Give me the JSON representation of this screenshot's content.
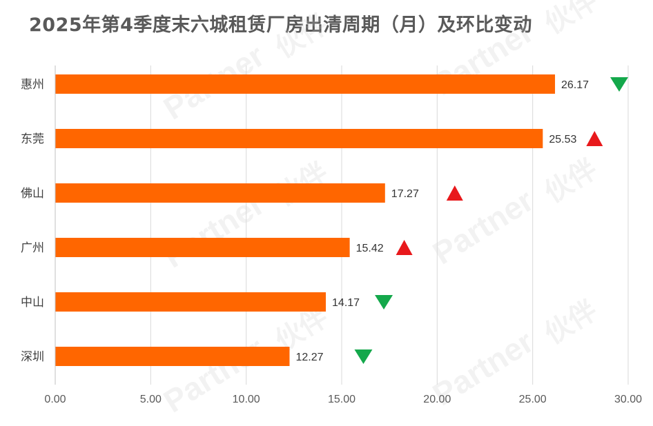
{
  "title": "2025年第4季度末六城租赁厂房出清周期（月）及环比变动",
  "chart_data": {
    "type": "bar",
    "orientation": "horizontal",
    "title": "2025年第4季度末六城租赁厂房出清周期（月）及环比变动",
    "categories": [
      "惠州",
      "东莞",
      "佛山",
      "广州",
      "中山",
      "深圳"
    ],
    "values": [
      26.17,
      25.53,
      17.27,
      15.42,
      14.17,
      12.27
    ],
    "value_labels": [
      "26.17",
      "25.53",
      "17.27",
      "15.42",
      "14.17",
      "12.27"
    ],
    "change_direction": [
      "down",
      "up",
      "up",
      "up",
      "down",
      "down"
    ],
    "xlim": [
      0,
      30
    ],
    "xticks": [
      "0.00",
      "5.00",
      "10.00",
      "15.00",
      "20.00",
      "25.00",
      "30.00"
    ],
    "grid": true,
    "legend": "none",
    "colors": {
      "bar": "#FF6600",
      "up": "#E8191C",
      "down": "#14A84B",
      "grid": "#D9D9D9"
    }
  },
  "watermark": {
    "brand": "伙伴",
    "text": "Partner"
  }
}
